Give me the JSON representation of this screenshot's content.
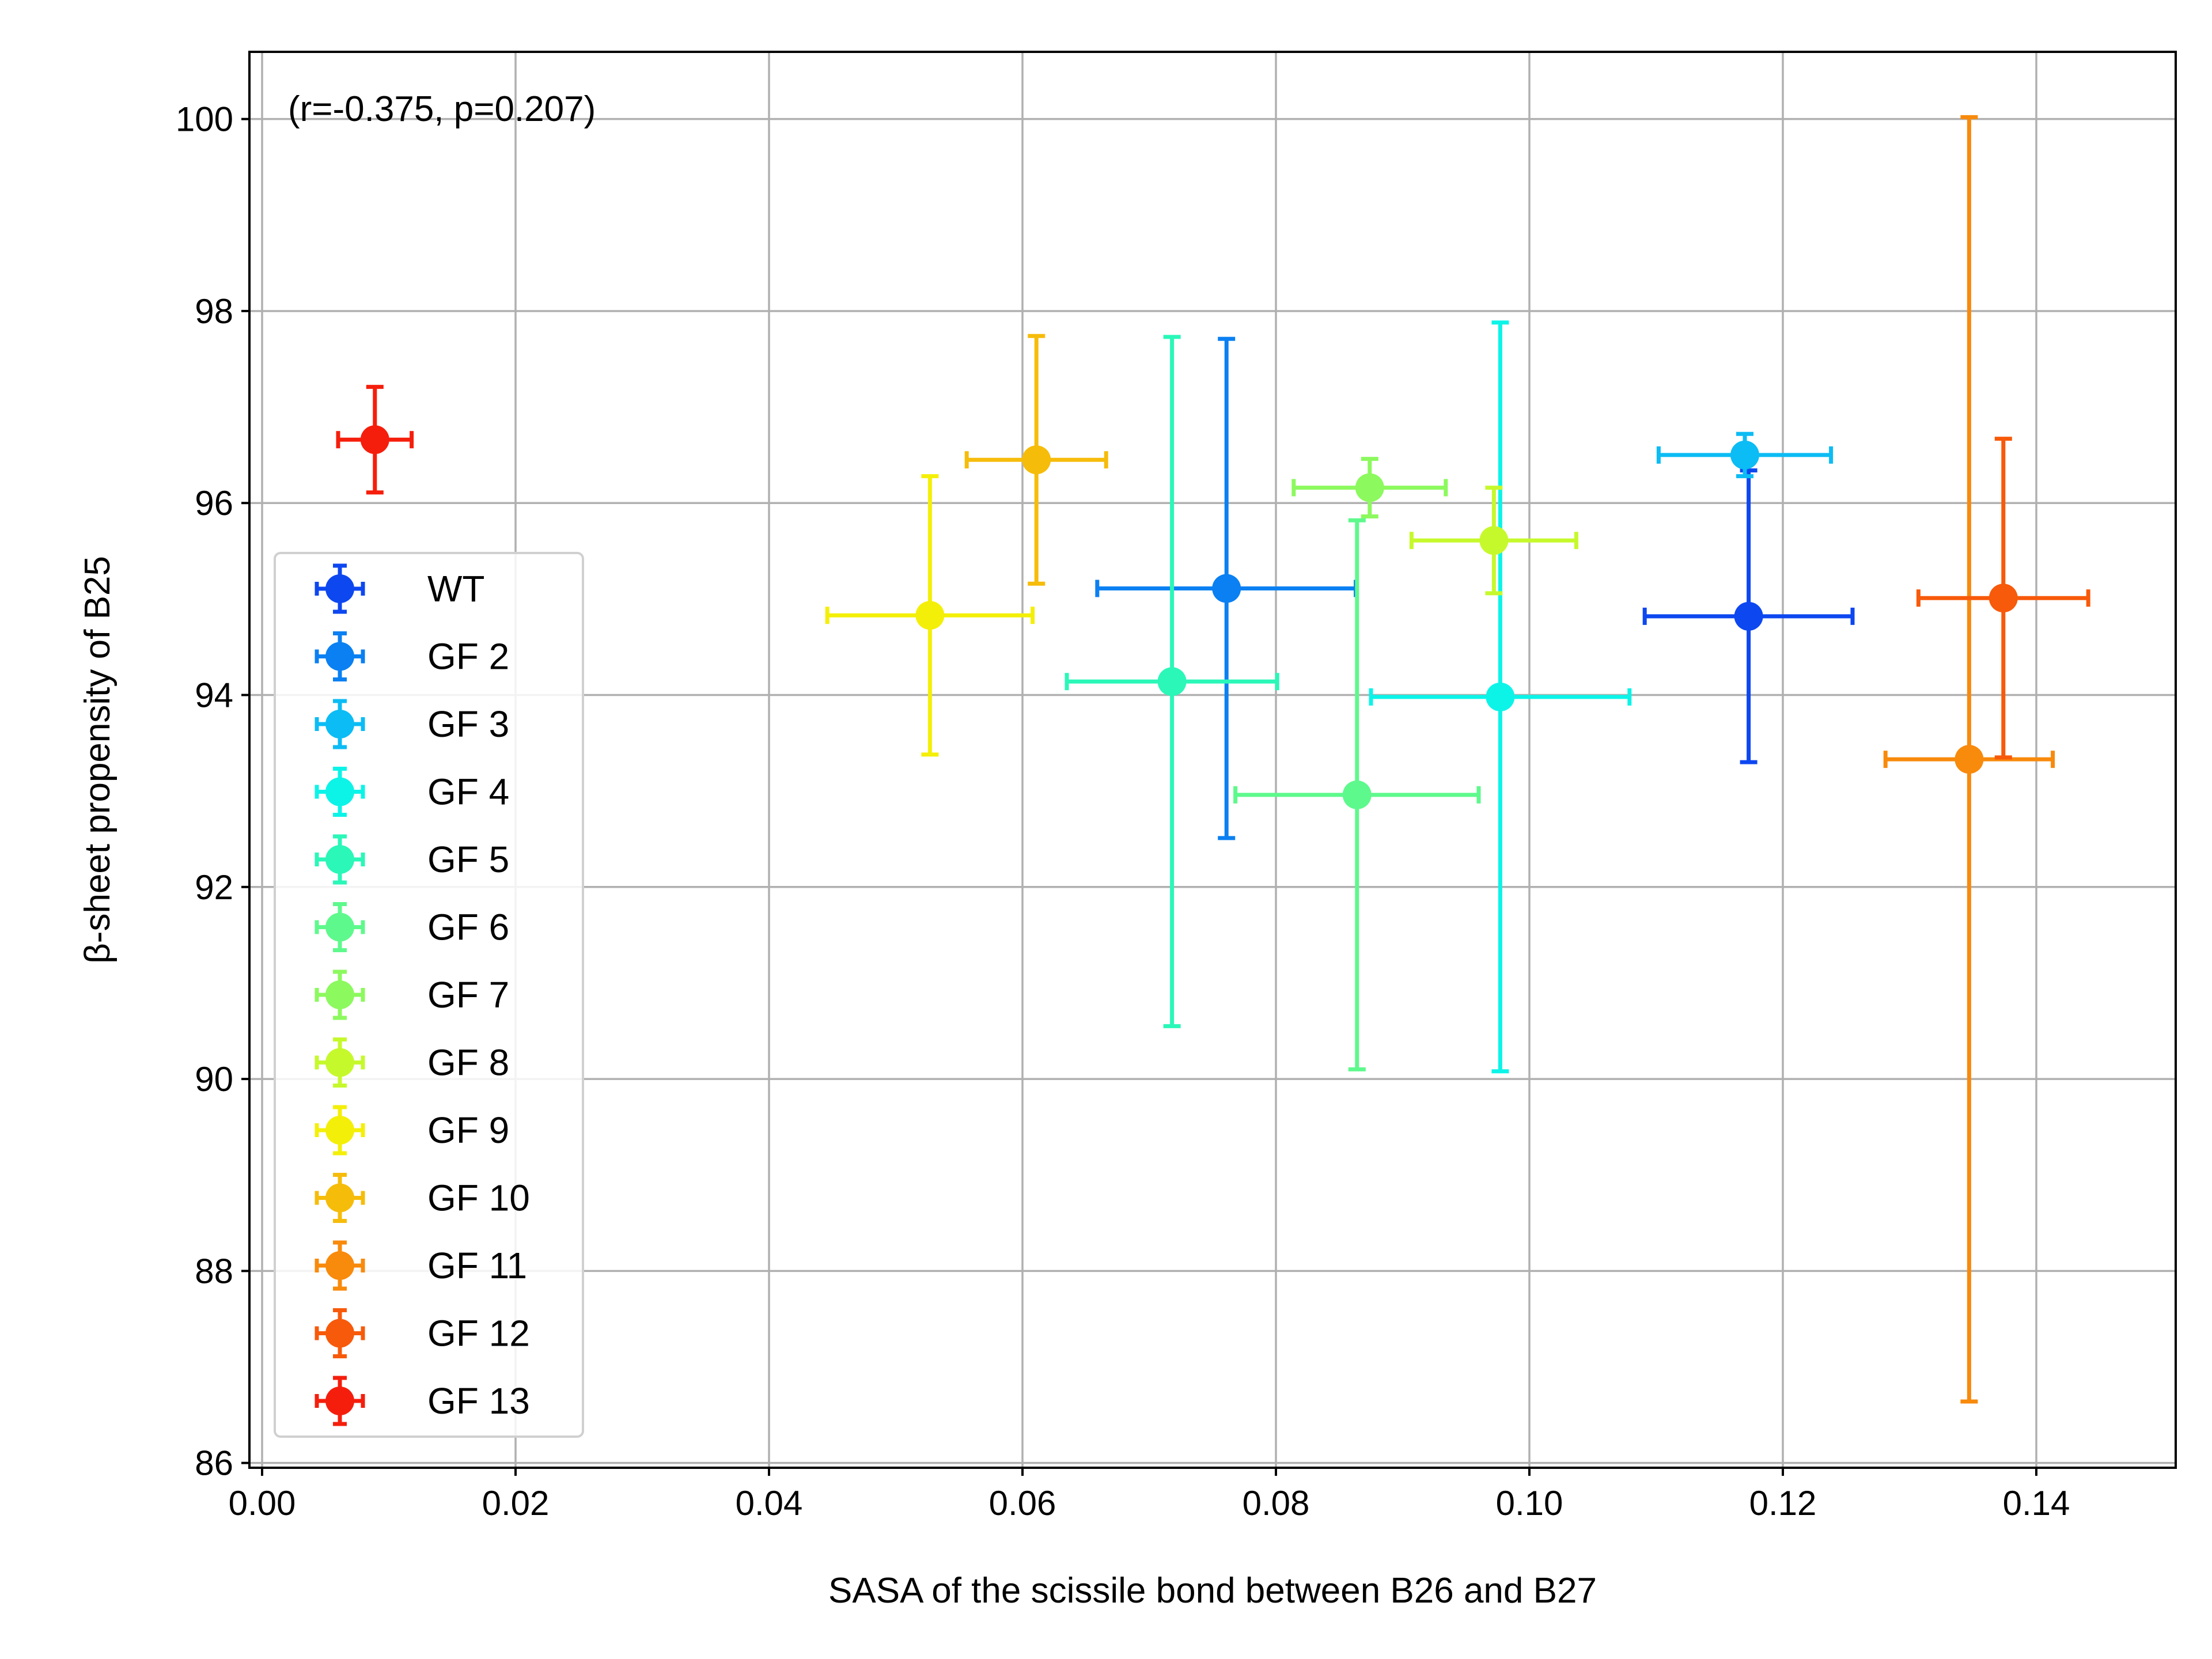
{
  "chart_data": {
    "type": "scatter",
    "title": "",
    "xlabel": "SASA of the scissile bond between B26 and B27",
    "ylabel": "β-sheet propensity of B25",
    "annotation": "(r=-0.375, p=0.207)",
    "xlim": [
      -0.001,
      0.151
    ],
    "ylim": [
      85.95,
      100.7
    ],
    "xticks": [
      0.0,
      0.02,
      0.04,
      0.06,
      0.08,
      0.1,
      0.12,
      0.14
    ],
    "xtick_labels": [
      "0.00",
      "0.02",
      "0.04",
      "0.06",
      "0.08",
      "0.10",
      "0.12",
      "0.14"
    ],
    "yticks": [
      86,
      88,
      90,
      92,
      94,
      96,
      98,
      100
    ],
    "ytick_labels": [
      "86",
      "88",
      "90",
      "92",
      "94",
      "96",
      "98",
      "100"
    ],
    "grid": true,
    "legend_position": "left-middle",
    "series": [
      {
        "name": "WT",
        "color": "#0d47f0",
        "x": 0.1173,
        "y": 94.82,
        "xerr": 0.0082,
        "yerr": 1.52
      },
      {
        "name": "GF 2",
        "color": "#0a80f2",
        "x": 0.0761,
        "y": 95.11,
        "xerr": 0.0102,
        "yerr": 2.6
      },
      {
        "name": "GF 3",
        "color": "#0cbcf4",
        "x": 0.117,
        "y": 96.5,
        "xerr": 0.0068,
        "yerr": 0.22
      },
      {
        "name": "GF 4",
        "color": "#0cf4e8",
        "x": 0.0977,
        "y": 93.98,
        "xerr": 0.0102,
        "yerr": 3.9
      },
      {
        "name": "GF 5",
        "color": "#2af7b8",
        "x": 0.0718,
        "y": 94.14,
        "xerr": 0.0083,
        "yerr": 3.59
      },
      {
        "name": "GF 6",
        "color": "#5ef98c",
        "x": 0.0864,
        "y": 92.96,
        "xerr": 0.0096,
        "yerr": 2.86
      },
      {
        "name": "GF 7",
        "color": "#8cf95e",
        "x": 0.0874,
        "y": 96.16,
        "xerr": 0.006,
        "yerr": 0.3
      },
      {
        "name": "GF 8",
        "color": "#c6f92c",
        "x": 0.0972,
        "y": 95.61,
        "xerr": 0.0065,
        "yerr": 0.55
      },
      {
        "name": "GF 9",
        "color": "#f4ef08",
        "x": 0.0527,
        "y": 94.83,
        "xerr": 0.0081,
        "yerr": 1.45
      },
      {
        "name": "GF 10",
        "color": "#f6bc0a",
        "x": 0.0611,
        "y": 96.45,
        "xerr": 0.0055,
        "yerr": 1.29
      },
      {
        "name": "GF 11",
        "color": "#f88a0c",
        "x": 0.1347,
        "y": 93.33,
        "xerr": 0.0066,
        "yerr": 6.69
      },
      {
        "name": "GF 12",
        "color": "#f75a0a",
        "x": 0.1374,
        "y": 95.01,
        "xerr": 0.0067,
        "yerr": 1.66
      },
      {
        "name": "GF 13",
        "color": "#f51e0c",
        "x": 0.0089,
        "y": 96.66,
        "xerr": 0.0029,
        "yerr": 0.55
      }
    ]
  }
}
